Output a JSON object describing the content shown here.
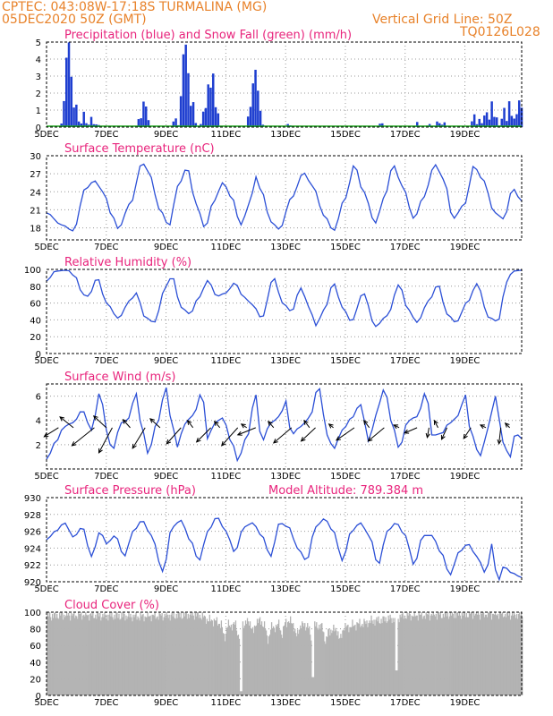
{
  "header": {
    "line1_left": "CPTEC:   043:08W-17:18S   TURMALINA (MG)",
    "line2_left": "05DEC2020 50Z (GMT)",
    "line2_right": "Vertical Grid Line: 50Z",
    "line3_right": "TQ0126L028"
  },
  "colors": {
    "line": "#2b4fd6",
    "precip": "#1f3fd0",
    "snow": "#1aa01a",
    "cloud": "#b3b3b3",
    "title": "#e8247c",
    "header": "#e8822a"
  },
  "x_axis": {
    "range": [
      0,
      15.9
    ],
    "tick_positions": [
      0,
      2,
      4,
      6,
      8,
      10,
      12,
      14
    ],
    "tick_labels": [
      "5DEC",
      "7DEC",
      "9DEC",
      "11DEC",
      "13DEC",
      "15DEC",
      "17DEC",
      "19DEC"
    ]
  },
  "chart_data": [
    {
      "type": "bar",
      "title": "Precipitation (blue) and Snow Fall (green) (mm/h)",
      "ylim": [
        0,
        5
      ],
      "yticks": [
        0,
        1,
        2,
        3,
        4,
        5
      ],
      "series": [
        {
          "name": "Precipitation",
          "color": "#1f3fd0",
          "x": [],
          "values": []
        },
        {
          "name": "Snow Fall",
          "color": "#1aa01a",
          "x": [],
          "values": []
        }
      ]
    },
    {
      "type": "line",
      "title": "Surface Temperature (nC)",
      "ylim": [
        16,
        30
      ],
      "yticks": [
        18,
        21,
        24,
        27,
        30
      ],
      "x": [],
      "values": []
    },
    {
      "type": "line",
      "title": "Relative Humidity (%)",
      "ylim": [
        0,
        100
      ],
      "yticks": [
        0,
        20,
        40,
        60,
        80,
        100
      ],
      "x": [],
      "values": []
    },
    {
      "type": "line",
      "title": "Surface Wind (m/s)",
      "ylim": [
        0,
        7
      ],
      "yticks": [
        2,
        4,
        6
      ],
      "x": [],
      "values": [],
      "vectors": []
    },
    {
      "type": "line",
      "title": "Surface Pressure (hPa)",
      "subtitle": "Model Altitude: 789.384 m",
      "ylim": [
        920,
        930
      ],
      "yticks": [
        920,
        922,
        924,
        926,
        928,
        930
      ],
      "x": [],
      "values": []
    },
    {
      "type": "bar",
      "title": "Cloud Cover (%)",
      "ylim": [
        0,
        100
      ],
      "yticks": [
        0,
        20,
        40,
        60,
        80,
        100
      ],
      "x": [],
      "values": []
    }
  ]
}
